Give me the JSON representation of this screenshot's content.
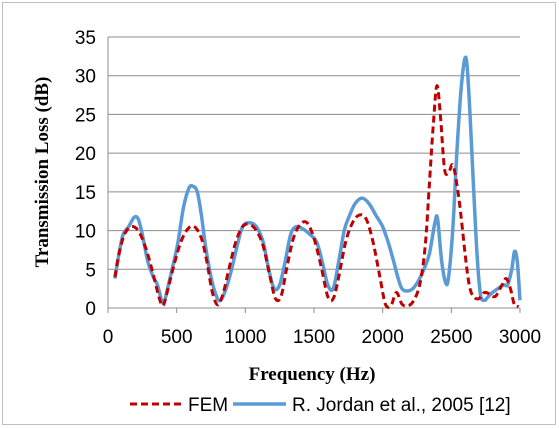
{
  "chart_data": {
    "type": "line",
    "title": "",
    "xlabel": "Frequency (Hz)",
    "ylabel": "Transmission Loss (dB)",
    "xlim": [
      0,
      3000
    ],
    "ylim": [
      0,
      35
    ],
    "xticks": [
      0,
      500,
      1000,
      1500,
      2000,
      2500,
      3000
    ],
    "yticks": [
      0,
      5,
      10,
      15,
      20,
      25,
      30,
      35
    ],
    "xtick_labels": [
      "0",
      "500",
      "1000",
      "1500",
      "2000",
      "2500",
      "3000"
    ],
    "ytick_labels": [
      "0",
      "5",
      "10",
      "15",
      "20",
      "25",
      "30",
      "35"
    ],
    "grid": "horizontal",
    "legend_position": "bottom",
    "series": [
      {
        "name": "FEM",
        "color": "#c00000",
        "style": "dashed",
        "points": [
          [
            50,
            4
          ],
          [
            80,
            7
          ],
          [
            120,
            9.5
          ],
          [
            170,
            10.5
          ],
          [
            220,
            10
          ],
          [
            270,
            8
          ],
          [
            320,
            5
          ],
          [
            370,
            1.5
          ],
          [
            400,
            0.3
          ],
          [
            430,
            2
          ],
          [
            480,
            5.5
          ],
          [
            530,
            8.5
          ],
          [
            580,
            10.2
          ],
          [
            630,
            10.5
          ],
          [
            680,
            9
          ],
          [
            720,
            6
          ],
          [
            760,
            2
          ],
          [
            800,
            0.4
          ],
          [
            840,
            2
          ],
          [
            880,
            5
          ],
          [
            930,
            8.5
          ],
          [
            980,
            10.5
          ],
          [
            1030,
            10.8
          ],
          [
            1080,
            10
          ],
          [
            1130,
            8
          ],
          [
            1180,
            4
          ],
          [
            1220,
            1.2
          ],
          [
            1260,
            1.5
          ],
          [
            1300,
            5
          ],
          [
            1350,
            9
          ],
          [
            1400,
            10.8
          ],
          [
            1450,
            11
          ],
          [
            1500,
            9
          ],
          [
            1550,
            5.5
          ],
          [
            1600,
            1.5
          ],
          [
            1640,
            1.2
          ],
          [
            1680,
            4
          ],
          [
            1730,
            8.5
          ],
          [
            1780,
            11
          ],
          [
            1830,
            12
          ],
          [
            1880,
            11.5
          ],
          [
            1930,
            8.5
          ],
          [
            1980,
            4
          ],
          [
            2020,
            0.5
          ],
          [
            2060,
            0.3
          ],
          [
            2100,
            2
          ],
          [
            2140,
            0.5
          ],
          [
            2180,
            0.3
          ],
          [
            2220,
            0.8
          ],
          [
            2270,
            3
          ],
          [
            2310,
            8
          ],
          [
            2340,
            16
          ],
          [
            2370,
            24
          ],
          [
            2395,
            28.7
          ],
          [
            2420,
            25
          ],
          [
            2450,
            18
          ],
          [
            2480,
            17.5
          ],
          [
            2510,
            18.5
          ],
          [
            2540,
            16
          ],
          [
            2570,
            12
          ],
          [
            2600,
            7
          ],
          [
            2630,
            3
          ],
          [
            2660,
            1.5
          ],
          [
            2700,
            1.2
          ],
          [
            2740,
            2
          ],
          [
            2780,
            1.8
          ],
          [
            2820,
            1.5
          ],
          [
            2870,
            3
          ],
          [
            2900,
            3.8
          ],
          [
            2930,
            2.5
          ],
          [
            2960,
            0.4
          ],
          [
            2990,
            0.2
          ]
        ]
      },
      {
        "name": "R. Jordan et al., 2005 [12]",
        "color": "#5b9bd5",
        "style": "solid",
        "points": [
          [
            50,
            3.8
          ],
          [
            80,
            7
          ],
          [
            110,
            9.5
          ],
          [
            150,
            10.5
          ],
          [
            190,
            11.7
          ],
          [
            220,
            11.5
          ],
          [
            250,
            9.5
          ],
          [
            290,
            6
          ],
          [
            330,
            4
          ],
          [
            360,
            3
          ],
          [
            390,
            1
          ],
          [
            410,
            0.8
          ],
          [
            440,
            3
          ],
          [
            480,
            6
          ],
          [
            510,
            8.5
          ],
          [
            550,
            13
          ],
          [
            590,
            15.5
          ],
          [
            620,
            15.7
          ],
          [
            650,
            15
          ],
          [
            680,
            12
          ],
          [
            710,
            8
          ],
          [
            750,
            4
          ],
          [
            790,
            1.5
          ],
          [
            820,
            1
          ],
          [
            860,
            2.5
          ],
          [
            900,
            5
          ],
          [
            940,
            8
          ],
          [
            980,
            10.5
          ],
          [
            1030,
            11
          ],
          [
            1080,
            10.5
          ],
          [
            1130,
            8.5
          ],
          [
            1170,
            5
          ],
          [
            1210,
            2.5
          ],
          [
            1250,
            3
          ],
          [
            1290,
            6
          ],
          [
            1330,
            9.5
          ],
          [
            1370,
            10.5
          ],
          [
            1420,
            10.2
          ],
          [
            1470,
            9.5
          ],
          [
            1520,
            8.5
          ],
          [
            1560,
            6
          ],
          [
            1600,
            3
          ],
          [
            1640,
            2.5
          ],
          [
            1680,
            6
          ],
          [
            1720,
            10
          ],
          [
            1760,
            12
          ],
          [
            1800,
            13.5
          ],
          [
            1850,
            14.2
          ],
          [
            1900,
            13.5
          ],
          [
            1950,
            12
          ],
          [
            2000,
            10.5
          ],
          [
            2040,
            8.5
          ],
          [
            2080,
            6
          ],
          [
            2110,
            4
          ],
          [
            2140,
            2.5
          ],
          [
            2180,
            2.2
          ],
          [
            2220,
            2.5
          ],
          [
            2260,
            3.5
          ],
          [
            2300,
            5
          ],
          [
            2340,
            7
          ],
          [
            2380,
            11
          ],
          [
            2400,
            11.5
          ],
          [
            2430,
            6
          ],
          [
            2460,
            3.2
          ],
          [
            2480,
            4
          ],
          [
            2510,
            10
          ],
          [
            2540,
            20
          ],
          [
            2570,
            28
          ],
          [
            2600,
            32.3
          ],
          [
            2620,
            30
          ],
          [
            2650,
            20
          ],
          [
            2680,
            9
          ],
          [
            2710,
            2
          ],
          [
            2740,
            1
          ],
          [
            2770,
            1.5
          ],
          [
            2800,
            2
          ],
          [
            2840,
            2.5
          ],
          [
            2880,
            3
          ],
          [
            2910,
            3
          ],
          [
            2940,
            5
          ],
          [
            2960,
            7.3
          ],
          [
            2980,
            6
          ],
          [
            3000,
            1
          ]
        ]
      }
    ]
  }
}
